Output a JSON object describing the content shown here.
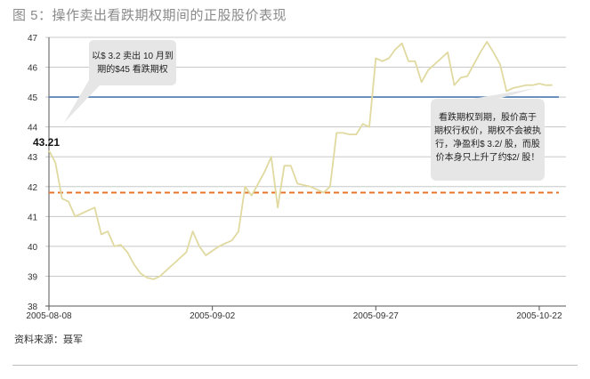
{
  "title": "图 5：操作卖出看跌期权期间的正股股价表现",
  "source": "资料来源：聂军",
  "chart_data": {
    "type": "line",
    "ylim": [
      38,
      47
    ],
    "yticks": [
      38,
      39,
      40,
      41,
      42,
      43,
      44,
      45,
      46,
      47
    ],
    "x_tick_labels": [
      "2005-08-08",
      "2005-09-02",
      "2005-09-27",
      "2005-10-22"
    ],
    "x_tick_days": [
      0,
      25,
      50,
      75
    ],
    "x_range_days": [
      0,
      78
    ],
    "series": [
      {
        "color": "#e0d9a0",
        "x": [
          0,
          1,
          2,
          3,
          4,
          5,
          6,
          7,
          8,
          9,
          10,
          11,
          12,
          13,
          14,
          15,
          16,
          17,
          18,
          19,
          20,
          21,
          22,
          23,
          24,
          25,
          26,
          27,
          28,
          29,
          30,
          31,
          32,
          33,
          34,
          35,
          36,
          37,
          38,
          39,
          40,
          41,
          42,
          43,
          44,
          45,
          46,
          47,
          48,
          49,
          50,
          51,
          52,
          53,
          54,
          55,
          56,
          57,
          58,
          59,
          60,
          61,
          62,
          63,
          64,
          65,
          66,
          67,
          68,
          69,
          70,
          71,
          72,
          73,
          74,
          75,
          76,
          77
        ],
        "values": [
          43.21,
          42.8,
          41.6,
          41.5,
          41.0,
          41.1,
          41.2,
          41.3,
          40.4,
          40.5,
          40.0,
          40.05,
          39.8,
          39.4,
          39.1,
          38.95,
          38.9,
          39.0,
          39.2,
          39.4,
          39.6,
          39.8,
          40.5,
          40.0,
          39.7,
          39.85,
          40.0,
          40.1,
          40.2,
          40.5,
          42.0,
          41.7,
          42.1,
          42.5,
          43.0,
          41.3,
          42.7,
          42.7,
          42.1,
          42.05,
          42.0,
          41.9,
          41.8,
          42.0,
          43.8,
          43.8,
          43.75,
          43.75,
          44.1,
          44.0,
          46.3,
          46.2,
          46.3,
          46.6,
          46.8,
          46.2,
          46.2,
          45.5,
          45.9,
          46.1,
          46.3,
          46.5,
          45.4,
          45.65,
          45.7,
          46.1,
          46.5,
          46.85,
          46.5,
          46.1,
          45.2,
          45.3,
          45.35,
          45.4,
          45.4,
          45.45,
          45.4,
          45.4
        ]
      }
    ],
    "reference_lines": [
      {
        "value": 45,
        "color": "#4a78b0",
        "style": "solid"
      },
      {
        "value": 41.8,
        "color": "#e8742a",
        "style": "dashed"
      }
    ],
    "start_label": "43.21",
    "annotations": [
      {
        "id": "left",
        "lines": [
          "以$ 3.2 卖出 10 月到",
          "期的$45 看跌期权"
        ]
      },
      {
        "id": "right",
        "lines": [
          "看跌期权到期，股价高于",
          "期权行权价，期权不会被执",
          "行，净盈利$ 3.2/ 股，而股",
          "价本身只上升了约$2/ 股！"
        ]
      }
    ]
  }
}
